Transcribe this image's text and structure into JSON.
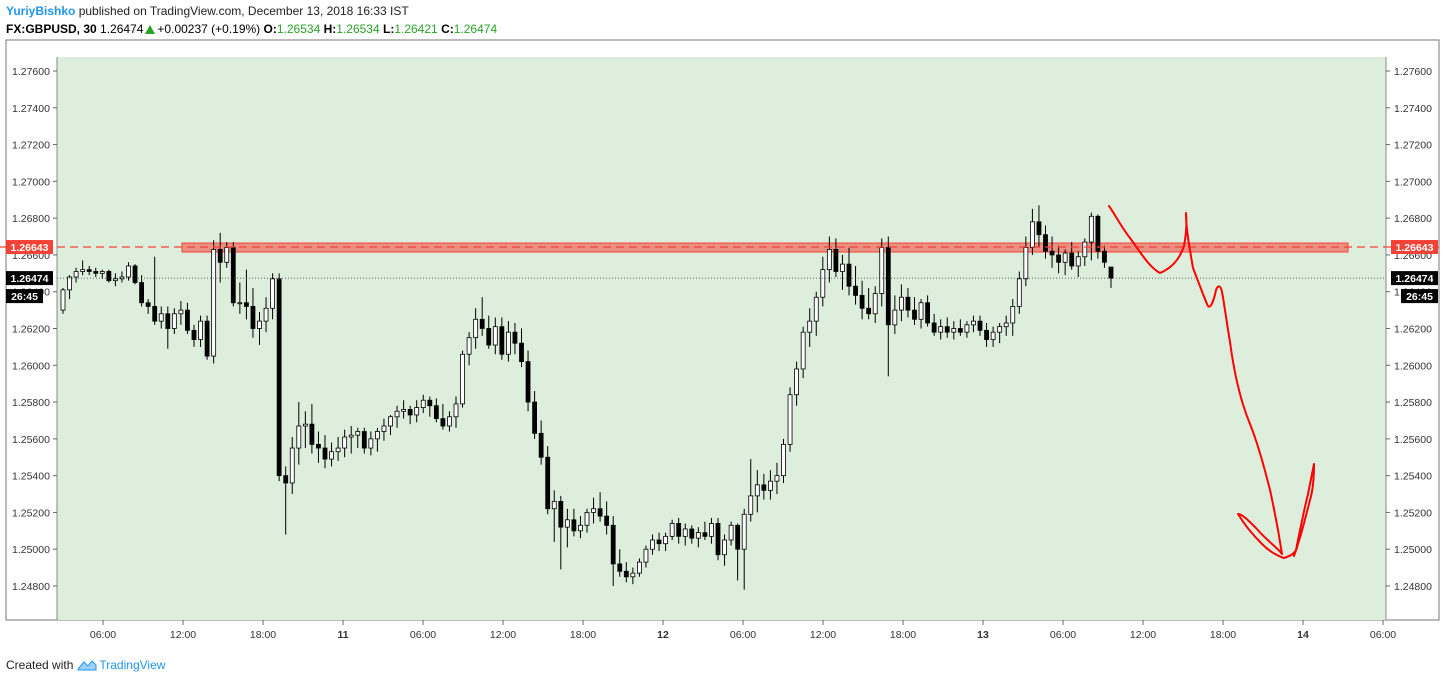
{
  "header": {
    "author": "YuriyBishko",
    "published_text": "published on TradingView.com, December 13, 2018 16:33 IST",
    "symbol": "FX:GBPUSD, 30",
    "last": "1.26474",
    "change": "+0.00237 (+0.19%)",
    "o_label": "O:",
    "o_value": "1.26534",
    "h_label": "H:",
    "h_value": "1.26534",
    "l_label": "L:",
    "l_value": "1.26421",
    "c_label": "C:",
    "c_value": "1.26474"
  },
  "footer": {
    "created_with": "Created with",
    "brand": "TradingView"
  },
  "colors": {
    "background": "#ffffff",
    "plot_bg": "#ddeedd",
    "up_candle": "#ffffff",
    "down_candle": "#000000",
    "resistance": "#f44336",
    "drawing": "#ff0000",
    "change_up": "#27a327",
    "brand": "#2196f3"
  },
  "chart_data": {
    "type": "candlestick",
    "symbol": "FX:GBPUSD",
    "interval": "30",
    "x_tick_labels": [
      "06:00",
      "12:00",
      "18:00",
      "11",
      "06:00",
      "12:00",
      "18:00",
      "12",
      "06:00",
      "12:00",
      "18:00",
      "13",
      "06:00",
      "12:00",
      "18:00",
      "14",
      "06:00"
    ],
    "y_tick_labels": [
      "1.27600",
      "1.27400",
      "1.27200",
      "1.27000",
      "1.26800",
      "1.26600",
      "1.26400",
      "1.26200",
      "1.26000",
      "1.25800",
      "1.25600",
      "1.25400",
      "1.25200",
      "1.25000",
      "1.24800"
    ],
    "ylim": [
      1.2466,
      1.2776
    ],
    "resistance_level": 1.26643,
    "resistance_label": "1.26643",
    "last_price": 1.26474,
    "last_price_label": "1.26474",
    "countdown_label": "26:45",
    "grid": false,
    "candles_ohlc": [
      [
        1.263,
        1.2642,
        1.2628,
        1.2641
      ],
      [
        1.2641,
        1.2649,
        1.2636,
        1.2648
      ],
      [
        1.2648,
        1.2653,
        1.2645,
        1.2651
      ],
      [
        1.2651,
        1.2657,
        1.2649,
        1.2652
      ],
      [
        1.2652,
        1.2654,
        1.2649,
        1.2651
      ],
      [
        1.2651,
        1.2653,
        1.2648,
        1.265
      ],
      [
        1.265,
        1.2652,
        1.2647,
        1.2651
      ],
      [
        1.2651,
        1.2652,
        1.2645,
        1.2646
      ],
      [
        1.2646,
        1.265,
        1.2643,
        1.2647
      ],
      [
        1.2647,
        1.2651,
        1.2645,
        1.2648
      ],
      [
        1.2648,
        1.2656,
        1.2646,
        1.2654
      ],
      [
        1.2654,
        1.2655,
        1.2644,
        1.2645
      ],
      [
        1.2645,
        1.2649,
        1.2632,
        1.2634
      ],
      [
        1.2634,
        1.2636,
        1.2628,
        1.2632
      ],
      [
        1.2632,
        1.2659,
        1.2622,
        1.2624
      ],
      [
        1.2624,
        1.2632,
        1.262,
        1.2628
      ],
      [
        1.2628,
        1.2632,
        1.2609,
        1.262
      ],
      [
        1.262,
        1.2631,
        1.2617,
        1.2628
      ],
      [
        1.2628,
        1.2635,
        1.2622,
        1.263
      ],
      [
        1.263,
        1.2634,
        1.2617,
        1.2619
      ],
      [
        1.2619,
        1.2622,
        1.261,
        1.2614
      ],
      [
        1.2614,
        1.2627,
        1.261,
        1.2624
      ],
      [
        1.2624,
        1.2627,
        1.2603,
        1.2605
      ],
      [
        1.2605,
        1.2668,
        1.2601,
        1.2663
      ],
      [
        1.2663,
        1.2672,
        1.2645,
        1.2656
      ],
      [
        1.2656,
        1.2667,
        1.2653,
        1.2664
      ],
      [
        1.2664,
        1.2667,
        1.2632,
        1.2634
      ],
      [
        1.2634,
        1.2645,
        1.2628,
        1.2634
      ],
      [
        1.2634,
        1.2652,
        1.2625,
        1.2632
      ],
      [
        1.2632,
        1.2642,
        1.2615,
        1.262
      ],
      [
        1.262,
        1.2629,
        1.2611,
        1.2624
      ],
      [
        1.2624,
        1.2637,
        1.2618,
        1.2631
      ],
      [
        1.2631,
        1.265,
        1.2625,
        1.2647
      ],
      [
        1.2647,
        1.265,
        1.2537,
        1.254
      ],
      [
        1.254,
        1.2545,
        1.2508,
        1.2536
      ],
      [
        1.2536,
        1.2561,
        1.253,
        1.2555
      ],
      [
        1.2555,
        1.258,
        1.2546,
        1.2567
      ],
      [
        1.2567,
        1.2575,
        1.2555,
        1.2568
      ],
      [
        1.2568,
        1.2579,
        1.2552,
        1.2557
      ],
      [
        1.2557,
        1.2564,
        1.2547,
        1.2555
      ],
      [
        1.2555,
        1.2562,
        1.2544,
        1.2549
      ],
      [
        1.2549,
        1.2558,
        1.2545,
        1.2553
      ],
      [
        1.2553,
        1.2561,
        1.2548,
        1.2555
      ],
      [
        1.2555,
        1.2565,
        1.255,
        1.2561
      ],
      [
        1.2561,
        1.2567,
        1.2552,
        1.2562
      ],
      [
        1.2562,
        1.2566,
        1.2555,
        1.2564
      ],
      [
        1.2564,
        1.2566,
        1.2552,
        1.2555
      ],
      [
        1.2555,
        1.2564,
        1.2551,
        1.256
      ],
      [
        1.256,
        1.2566,
        1.2553,
        1.2564
      ],
      [
        1.2564,
        1.2571,
        1.2559,
        1.2567
      ],
      [
        1.2567,
        1.2573,
        1.2562,
        1.2572
      ],
      [
        1.2572,
        1.2578,
        1.2566,
        1.2575
      ],
      [
        1.2575,
        1.2581,
        1.2571,
        1.2576
      ],
      [
        1.2576,
        1.2578,
        1.2568,
        1.2573
      ],
      [
        1.2573,
        1.2581,
        1.2569,
        1.2577
      ],
      [
        1.2577,
        1.2584,
        1.2574,
        1.2581
      ],
      [
        1.2581,
        1.2583,
        1.2572,
        1.2578
      ],
      [
        1.2578,
        1.2582,
        1.2569,
        1.2571
      ],
      [
        1.2571,
        1.2579,
        1.2565,
        1.2567
      ],
      [
        1.2567,
        1.2575,
        1.2564,
        1.2572
      ],
      [
        1.2572,
        1.2583,
        1.2566,
        1.2579
      ],
      [
        1.2579,
        1.2608,
        1.2577,
        1.2606
      ],
      [
        1.2606,
        1.2618,
        1.26,
        1.2615
      ],
      [
        1.2615,
        1.2631,
        1.2609,
        1.2625
      ],
      [
        1.2625,
        1.2637,
        1.2616,
        1.262
      ],
      [
        1.262,
        1.2627,
        1.2609,
        1.2611
      ],
      [
        1.2611,
        1.2626,
        1.2606,
        1.2621
      ],
      [
        1.2621,
        1.2626,
        1.2603,
        1.2606
      ],
      [
        1.2606,
        1.2624,
        1.2602,
        1.2618
      ],
      [
        1.2618,
        1.2623,
        1.2606,
        1.2612
      ],
      [
        1.2612,
        1.262,
        1.2599,
        1.2602
      ],
      [
        1.2602,
        1.2608,
        1.2575,
        1.258
      ],
      [
        1.258,
        1.2586,
        1.256,
        1.2563
      ],
      [
        1.2563,
        1.257,
        1.2546,
        1.255
      ],
      [
        1.255,
        1.2556,
        1.2519,
        1.2522
      ],
      [
        1.2522,
        1.2532,
        1.2504,
        1.2526
      ],
      [
        1.2526,
        1.2529,
        1.2489,
        1.2512
      ],
      [
        1.2512,
        1.2522,
        1.2501,
        1.2516
      ],
      [
        1.2516,
        1.2522,
        1.2507,
        1.251
      ],
      [
        1.251,
        1.2518,
        1.2506,
        1.2513
      ],
      [
        1.2513,
        1.2522,
        1.2509,
        1.252
      ],
      [
        1.252,
        1.2528,
        1.2514,
        1.2522
      ],
      [
        1.2522,
        1.2531,
        1.2515,
        1.2518
      ],
      [
        1.2518,
        1.2526,
        1.2508,
        1.2513
      ],
      [
        1.2513,
        1.2518,
        1.248,
        1.2492
      ],
      [
        1.2492,
        1.25,
        1.2485,
        1.2488
      ],
      [
        1.2488,
        1.2493,
        1.2482,
        1.2485
      ],
      [
        1.2485,
        1.249,
        1.2481,
        1.2487
      ],
      [
        1.2487,
        1.2495,
        1.2485,
        1.2493
      ],
      [
        1.2493,
        1.2502,
        1.249,
        1.25
      ],
      [
        1.25,
        1.2508,
        1.2497,
        1.2505
      ],
      [
        1.2505,
        1.2509,
        1.2499,
        1.2503
      ],
      [
        1.2503,
        1.2509,
        1.2499,
        1.2507
      ],
      [
        1.2507,
        1.2516,
        1.2505,
        1.2514
      ],
      [
        1.2514,
        1.2517,
        1.2503,
        1.2507
      ],
      [
        1.2507,
        1.2514,
        1.2502,
        1.2511
      ],
      [
        1.2511,
        1.2513,
        1.2503,
        1.2506
      ],
      [
        1.2506,
        1.2512,
        1.2501,
        1.2509
      ],
      [
        1.2509,
        1.2515,
        1.2505,
        1.2507
      ],
      [
        1.2507,
        1.2517,
        1.2503,
        1.2514
      ],
      [
        1.2514,
        1.2517,
        1.2494,
        1.2497
      ],
      [
        1.2497,
        1.2508,
        1.2491,
        1.2505
      ],
      [
        1.2505,
        1.2515,
        1.2502,
        1.2513
      ],
      [
        1.2513,
        1.2514,
        1.2483,
        1.25
      ],
      [
        1.25,
        1.2522,
        1.2478,
        1.2519
      ],
      [
        1.2519,
        1.2549,
        1.2515,
        1.2529
      ],
      [
        1.2529,
        1.2543,
        1.252,
        1.2535
      ],
      [
        1.2535,
        1.2541,
        1.2527,
        1.2532
      ],
      [
        1.2532,
        1.2543,
        1.2527,
        1.2537
      ],
      [
        1.2537,
        1.2547,
        1.253,
        1.254
      ],
      [
        1.254,
        1.256,
        1.2536,
        1.2557
      ],
      [
        1.2557,
        1.2588,
        1.2553,
        1.2584
      ],
      [
        1.2584,
        1.2602,
        1.2578,
        1.2598
      ],
      [
        1.2598,
        1.2621,
        1.2593,
        1.2618
      ],
      [
        1.2618,
        1.2631,
        1.261,
        1.2624
      ],
      [
        1.2624,
        1.264,
        1.2616,
        1.2637
      ],
      [
        1.2637,
        1.2659,
        1.2632,
        1.2652
      ],
      [
        1.2652,
        1.267,
        1.2645,
        1.2663
      ],
      [
        1.2663,
        1.2669,
        1.2648,
        1.2651
      ],
      [
        1.2651,
        1.266,
        1.2641,
        1.2655
      ],
      [
        1.2655,
        1.2664,
        1.2638,
        1.2643
      ],
      [
        1.2643,
        1.2654,
        1.2633,
        1.2638
      ],
      [
        1.2638,
        1.2646,
        1.2625,
        1.2631
      ],
      [
        1.2631,
        1.2642,
        1.2625,
        1.2628
      ],
      [
        1.2628,
        1.2643,
        1.2623,
        1.2639
      ],
      [
        1.2639,
        1.2669,
        1.2632,
        1.2664
      ],
      [
        1.2664,
        1.267,
        1.2594,
        1.2622
      ],
      [
        1.2622,
        1.2638,
        1.2617,
        1.263
      ],
      [
        1.263,
        1.2644,
        1.2624,
        1.2637
      ],
      [
        1.2637,
        1.2642,
        1.2626,
        1.263
      ],
      [
        1.263,
        1.2637,
        1.2622,
        1.2625
      ],
      [
        1.2625,
        1.2636,
        1.262,
        1.2634
      ],
      [
        1.2634,
        1.2638,
        1.2621,
        1.2623
      ],
      [
        1.2623,
        1.2628,
        1.2616,
        1.2618
      ],
      [
        1.2618,
        1.2625,
        1.2614,
        1.2621
      ],
      [
        1.2621,
        1.2626,
        1.2615,
        1.2618
      ],
      [
        1.2618,
        1.2624,
        1.2614,
        1.262
      ],
      [
        1.262,
        1.2625,
        1.2616,
        1.2618
      ],
      [
        1.2618,
        1.2624,
        1.2615,
        1.2622
      ],
      [
        1.2622,
        1.2627,
        1.2618,
        1.2624
      ],
      [
        1.2624,
        1.2627,
        1.2616,
        1.2619
      ],
      [
        1.2619,
        1.2623,
        1.261,
        1.2614
      ],
      [
        1.2614,
        1.2621,
        1.261,
        1.2618
      ],
      [
        1.2618,
        1.2623,
        1.2612,
        1.2621
      ],
      [
        1.2621,
        1.2627,
        1.2616,
        1.2623
      ],
      [
        1.2623,
        1.2636,
        1.2616,
        1.2632
      ],
      [
        1.2632,
        1.2651,
        1.2628,
        1.2647
      ],
      [
        1.2647,
        1.267,
        1.2643,
        1.2664
      ],
      [
        1.2664,
        1.2685,
        1.266,
        1.2678
      ],
      [
        1.2678,
        1.2687,
        1.2664,
        1.2671
      ],
      [
        1.2671,
        1.2676,
        1.2658,
        1.2662
      ],
      [
        1.2662,
        1.267,
        1.2653,
        1.266
      ],
      [
        1.266,
        1.2665,
        1.265,
        1.2656
      ],
      [
        1.2656,
        1.2663,
        1.2649,
        1.2661
      ],
      [
        1.2661,
        1.2667,
        1.2652,
        1.2654
      ],
      [
        1.2654,
        1.2662,
        1.2648,
        1.2659
      ],
      [
        1.2659,
        1.2669,
        1.2654,
        1.2667
      ],
      [
        1.2667,
        1.2683,
        1.2657,
        1.2681
      ],
      [
        1.2681,
        1.2682,
        1.2658,
        1.2662
      ],
      [
        1.2662,
        1.2665,
        1.2653,
        1.2656
      ],
      [
        1.26534,
        1.26534,
        1.26421,
        1.26474
      ]
    ]
  }
}
